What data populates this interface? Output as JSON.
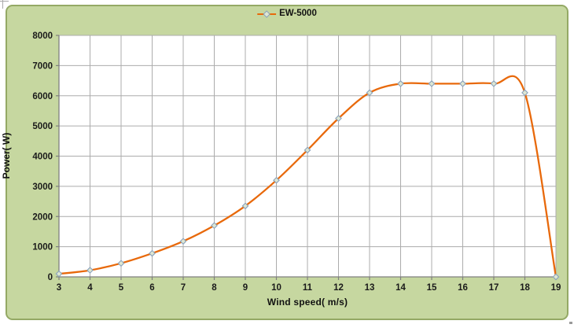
{
  "chart_data": {
    "type": "line",
    "title": "",
    "xlabel": "Wind speed( m/s)",
    "ylabel": "Power( W)",
    "legend": {
      "position": "top-center",
      "entries": [
        "EW-5000"
      ]
    },
    "x": [
      3,
      4,
      5,
      6,
      7,
      8,
      9,
      10,
      11,
      12,
      13,
      14,
      15,
      16,
      17,
      18,
      19
    ],
    "series": [
      {
        "name": "EW-5000",
        "values": [
          100,
          220,
          450,
          780,
          1180,
          1700,
          2350,
          3200,
          4200,
          5250,
          6100,
          6400,
          6400,
          6400,
          6400,
          6100,
          0
        ]
      }
    ],
    "xticks": [
      3,
      4,
      5,
      6,
      7,
      8,
      9,
      10,
      11,
      12,
      13,
      14,
      15,
      16,
      17,
      18,
      19
    ],
    "yticks": [
      0,
      1000,
      2000,
      3000,
      4000,
      5000,
      6000,
      7000,
      8000
    ],
    "xlim": [
      3,
      19
    ],
    "ylim": [
      0,
      8000
    ],
    "grid": true,
    "line_smoothing": true,
    "marker": "diamond",
    "colors": {
      "line": "#E8690B",
      "marker_outline": "#8AA2BC",
      "marker_fill": "#DEE7D2",
      "chart_background": "#C6D7A0",
      "chart_border": "#94A965",
      "plot_background": "#FFFFFF",
      "gridline": "#ACACAC",
      "axis": "#7F7F7F",
      "text": "#1A1A1A"
    }
  }
}
